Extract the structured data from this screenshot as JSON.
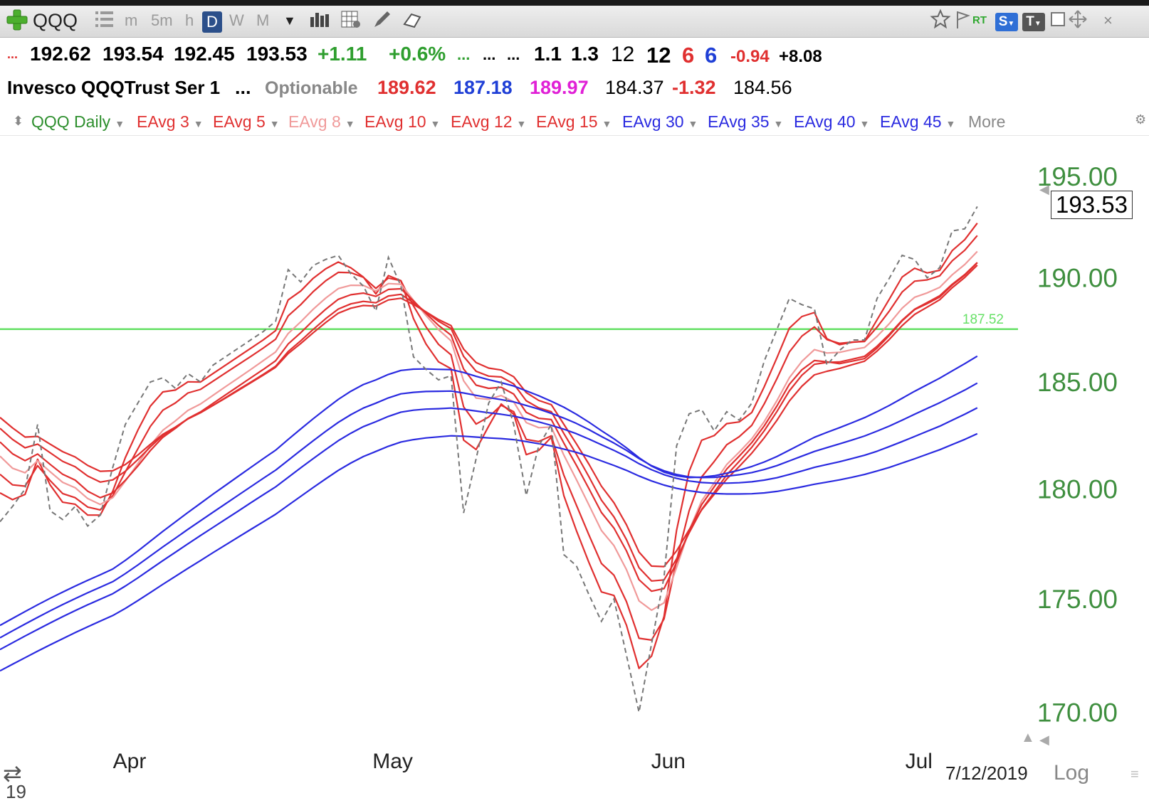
{
  "toolbar": {
    "symbol": "QQQ",
    "timeframes": [
      "m",
      "5m",
      "h",
      "D",
      "W",
      "M"
    ],
    "active_timeframe": "D",
    "rt_label": "RT",
    "s_label": "S",
    "t_label": "T"
  },
  "quote": {
    "row1": {
      "ellipsis": "...",
      "open": "192.62",
      "high": "193.54",
      "low": "192.45",
      "close": "193.53",
      "change": "+1.11",
      "change_pct": "+0.6%",
      "dots1": "...",
      "dots2": "...",
      "dots3": "...",
      "v1": "1.1",
      "v2": "1.3",
      "v3": "12",
      "v4": "12",
      "v5": "6",
      "v6": "6",
      "v7": "-0.94",
      "v8": "+8.08"
    },
    "row2": {
      "name": "Invesco QQQTrust Ser 1",
      "dots": "...",
      "optionable": "Optionable",
      "p1": "189.62",
      "p2": "187.18",
      "p3": "189.97",
      "p4": "184.37",
      "p5": "-1.32",
      "p6": "184.56"
    }
  },
  "legend": {
    "main": "QQQ Daily",
    "items": [
      {
        "label": "EAvg 3",
        "color": "#e03030"
      },
      {
        "label": "EAvg 5",
        "color": "#e03030"
      },
      {
        "label": "EAvg 8",
        "color": "#f09a9a"
      },
      {
        "label": "EAvg 10",
        "color": "#e03030"
      },
      {
        "label": "EAvg 12",
        "color": "#e03030"
      },
      {
        "label": "EAvg 15",
        "color": "#e03030"
      },
      {
        "label": "EAvg 30",
        "color": "#2a2ae0"
      },
      {
        "label": "EAvg 35",
        "color": "#2a2ae0"
      },
      {
        "label": "EAvg 40",
        "color": "#2a2ae0"
      },
      {
        "label": "EAvg 45",
        "color": "#2a2ae0"
      }
    ],
    "more": "More"
  },
  "chart_data": {
    "type": "line",
    "title": "QQQ Daily",
    "ylim": [
      168.5,
      197.0
    ],
    "y_ticks": [
      "195.00",
      "190.00",
      "185.00",
      "180.00",
      "175.00",
      "170.00"
    ],
    "y_tick_values": [
      195,
      190,
      185,
      180,
      175,
      170
    ],
    "x_month_labels": [
      {
        "label": "Apr",
        "index": 10
      },
      {
        "label": "May",
        "index": 31
      },
      {
        "label": "Jun",
        "index": 53
      },
      {
        "label": "Jul",
        "index": 73
      }
    ],
    "last_date": "7/12/2019",
    "current_price_label": "193.53",
    "horizontal_line": {
      "value": 187.52,
      "label": "187.52",
      "color": "#66e066"
    },
    "scale_label": "Log",
    "year_fragment": "19",
    "price_series": {
      "name": "QQQ",
      "style": "dashed",
      "color": "#777777",
      "values": [
        178.5,
        179.2,
        180.0,
        183.0,
        179.0,
        178.6,
        179.2,
        178.3,
        178.8,
        181.0,
        183.0,
        184.0,
        185.0,
        185.2,
        184.7,
        185.4,
        185.0,
        185.8,
        186.2,
        186.6,
        187.0,
        187.4,
        187.9,
        190.4,
        189.8,
        190.6,
        190.9,
        191.1,
        190.2,
        189.6,
        188.4,
        191.0,
        189.6,
        186.2,
        185.6,
        185.1,
        185.3,
        178.9,
        181.4,
        184.0,
        185.0,
        183.0,
        179.7,
        182.0,
        183.0,
        177.0,
        176.5,
        175.2,
        174.0,
        175.0,
        172.5,
        170.0,
        173.0,
        176.0,
        182.0,
        183.5,
        183.7,
        182.7,
        183.6,
        183.2,
        184.0,
        186.0,
        187.5,
        189.0,
        188.7,
        188.5,
        185.8,
        186.5,
        187.0,
        187.0,
        189.0,
        190.0,
        191.1,
        190.9,
        190.0,
        190.5,
        192.3,
        192.4,
        193.5
      ]
    },
    "series": [
      {
        "name": "EAvg 3",
        "color": "#e03030",
        "values": [
          179.82,
          179.51,
          179.75,
          181.38,
          180.19,
          179.39,
          179.3,
          178.8,
          178.8,
          179.9,
          181.45,
          182.73,
          183.86,
          184.53,
          184.62,
          185.01,
          185.0,
          185.4,
          185.8,
          186.2,
          186.6,
          187.0,
          187.45,
          188.93,
          189.36,
          189.98,
          190.44,
          190.77,
          190.49,
          190.04,
          189.22,
          190.11,
          189.86,
          188.03,
          186.81,
          185.96,
          185.63,
          182.27,
          181.83,
          182.92,
          183.96,
          183.48,
          181.59,
          181.79,
          182.4,
          179.7,
          178.1,
          176.65,
          175.32,
          175.16,
          173.83,
          171.92,
          172.46,
          174.23,
          178.11,
          180.81,
          182.26,
          182.48,
          183.04,
          183.12,
          183.56,
          184.78,
          186.14,
          187.57,
          188.13,
          188.32,
          187.06,
          186.78,
          186.89,
          186.95,
          187.97,
          188.99,
          190.04,
          190.47,
          190.24,
          190.37,
          191.33,
          191.87,
          192.68
        ]
      },
      {
        "name": "EAvg 5",
        "color": "#e03030",
        "values": [
          180.68,
          180.19,
          180.13,
          181.08,
          180.39,
          179.79,
          179.6,
          179.17,
          179.04,
          179.69,
          180.79,
          181.86,
          182.91,
          183.67,
          184.01,
          184.48,
          184.65,
          185.04,
          185.43,
          185.82,
          186.21,
          186.61,
          187.04,
          188.16,
          188.7,
          189.33,
          189.86,
          190.27,
          190.25,
          190.03,
          189.49,
          189.99,
          189.86,
          188.64,
          187.63,
          186.79,
          186.29,
          183.83,
          183.02,
          183.35,
          183.9,
          183.6,
          182.3,
          182.2,
          182.47,
          180.64,
          179.26,
          177.9,
          176.6,
          176.07,
          174.88,
          173.25,
          173.17,
          174.11,
          176.74,
          179.0,
          180.56,
          181.27,
          182.05,
          182.43,
          182.96,
          183.97,
          185.15,
          186.43,
          187.19,
          187.63,
          187.02,
          186.84,
          186.9,
          186.93,
          187.62,
          188.41,
          189.31,
          189.84,
          189.9,
          190.1,
          190.83,
          191.35,
          192.07
        ]
      },
      {
        "name": "EAvg 8",
        "color": "#f09a9a",
        "values": [
          181.52,
          180.96,
          180.75,
          181.31,
          180.8,
          180.31,
          180.06,
          179.56,
          179.29,
          179.6,
          180.36,
          181.17,
          182.02,
          182.73,
          183.17,
          183.66,
          183.96,
          184.37,
          184.78,
          185.18,
          185.59,
          186.01,
          186.43,
          187.31,
          187.87,
          188.48,
          189.02,
          189.48,
          189.64,
          189.63,
          189.36,
          189.72,
          189.69,
          188.91,
          188.18,
          187.5,
          186.96,
          185.06,
          184.24,
          184.18,
          184.36,
          184.06,
          183.09,
          182.85,
          182.88,
          181.57,
          180.44,
          179.27,
          178.1,
          177.41,
          176.32,
          174.92,
          174.5,
          174.83,
          176.42,
          178.1,
          179.45,
          180.28,
          181.13,
          181.71,
          182.33,
          183.14,
          184.11,
          185.2,
          185.98,
          186.54,
          186.38,
          186.41,
          186.54,
          186.64,
          187.17,
          187.8,
          188.53,
          189.06,
          189.27,
          189.54,
          190.15,
          190.65,
          191.29
        ]
      },
      {
        "name": "EAvg 10",
        "color": "#e03030",
        "values": [
          182.18,
          181.63,
          181.31,
          181.62,
          181.14,
          180.68,
          180.41,
          179.9,
          179.6,
          179.82,
          180.4,
          181.06,
          181.78,
          182.4,
          182.82,
          183.28,
          183.59,
          183.99,
          184.39,
          184.79,
          185.19,
          185.59,
          186.01,
          186.81,
          187.35,
          187.94,
          188.48,
          188.96,
          189.18,
          189.26,
          189.1,
          189.44,
          189.47,
          188.88,
          188.28,
          187.7,
          187.23,
          185.62,
          184.85,
          184.7,
          184.75,
          184.43,
          183.57,
          183.29,
          183.23,
          182.13,
          181.1,
          180.02,
          178.92,
          178.21,
          177.17,
          175.87,
          175.35,
          175.47,
          176.65,
          178.08,
          179.28,
          180.1,
          180.92,
          181.52,
          182.15,
          182.94,
          183.86,
          184.89,
          185.58,
          186.02,
          185.96,
          185.87,
          185.99,
          186.11,
          186.61,
          187.23,
          187.92,
          188.46,
          188.75,
          189.07,
          189.65,
          190.13,
          190.74
        ]
      },
      {
        "name": "EAvg 12",
        "color": "#e03030",
        "values": [
          182.82,
          182.3,
          181.91,
          182.08,
          181.68,
          181.28,
          181.03,
          180.6,
          180.32,
          180.42,
          180.82,
          181.36,
          181.95,
          182.49,
          182.86,
          183.26,
          183.55,
          183.9,
          184.26,
          184.63,
          184.99,
          185.36,
          185.75,
          186.45,
          186.96,
          187.51,
          188.03,
          188.49,
          188.74,
          188.86,
          188.79,
          189.12,
          189.2,
          188.79,
          188.34,
          187.9,
          187.55,
          186.22,
          185.51,
          185.28,
          185.24,
          184.91,
          184.11,
          183.78,
          183.6,
          182.58,
          181.61,
          180.57,
          179.49,
          178.72,
          177.68,
          176.41,
          175.81,
          175.86,
          176.81,
          177.99,
          179.06,
          179.85,
          180.65,
          181.28,
          181.93,
          182.71,
          183.6,
          184.58,
          185.32,
          185.84,
          185.93,
          185.95,
          186.08,
          186.22,
          186.7,
          187.29,
          187.95,
          188.48,
          188.8,
          189.13,
          189.69,
          190.16,
          190.75
        ]
      },
      {
        "name": "EAvg 15",
        "color": "#e03030",
        "values": [
          183.33,
          182.84,
          182.41,
          182.44,
          182.08,
          181.73,
          181.48,
          181.09,
          180.82,
          180.84,
          181.13,
          181.57,
          182.07,
          182.54,
          182.88,
          183.27,
          183.55,
          183.89,
          184.24,
          184.6,
          184.96,
          185.32,
          185.7,
          186.35,
          186.83,
          187.35,
          187.84,
          188.29,
          188.53,
          188.66,
          188.63,
          188.93,
          189.01,
          188.71,
          188.35,
          187.98,
          187.69,
          186.57,
          185.92,
          185.66,
          185.57,
          185.25,
          184.5,
          184.13,
          183.93,
          183.01,
          182.1,
          181.15,
          180.13,
          179.37,
          178.36,
          177.12,
          176.48,
          176.46,
          177.17,
          178.13,
          179.04,
          179.75,
          180.46,
          181.04,
          181.66,
          182.38,
          183.19,
          184.1,
          184.8,
          185.34,
          185.51,
          185.64,
          185.82,
          185.99,
          186.47,
          187.04,
          187.69,
          188.23,
          188.58,
          188.94,
          189.52,
          190.02,
          190.62
        ]
      },
      {
        "name": "EAvg 30",
        "color": "#2a2ae0",
        "values": [
          173.82,
          174.13,
          174.44,
          174.74,
          175.03,
          175.31,
          175.58,
          175.84,
          176.09,
          176.35,
          176.74,
          177.16,
          177.61,
          178.06,
          178.49,
          178.92,
          179.34,
          179.76,
          180.17,
          180.58,
          180.99,
          181.4,
          181.8,
          182.3,
          182.79,
          183.27,
          183.73,
          184.18,
          184.56,
          184.88,
          185.1,
          185.36,
          185.55,
          185.61,
          185.62,
          185.6,
          185.59,
          185.45,
          185.27,
          185.11,
          184.97,
          184.81,
          184.58,
          184.35,
          184.09,
          183.81,
          183.48,
          183.11,
          182.71,
          182.33,
          181.91,
          181.45,
          181.06,
          180.78,
          180.61,
          180.53,
          180.55,
          180.61,
          180.73,
          180.87,
          181.04,
          181.25,
          181.5,
          181.8,
          182.1,
          182.4,
          182.63,
          182.85,
          183.08,
          183.32,
          183.6,
          183.9,
          184.23,
          184.56,
          184.87,
          185.18,
          185.53,
          185.87,
          186.23
        ]
      },
      {
        "name": "EAvg 35",
        "color": "#2a2ae0",
        "values": [
          173.27,
          173.58,
          173.88,
          174.18,
          174.47,
          174.75,
          175.02,
          175.28,
          175.53,
          175.78,
          176.14,
          176.53,
          176.94,
          177.35,
          177.75,
          178.15,
          178.54,
          178.93,
          179.32,
          179.71,
          180.1,
          180.49,
          180.87,
          181.33,
          181.79,
          182.24,
          182.68,
          183.1,
          183.46,
          183.77,
          184.0,
          184.25,
          184.44,
          184.51,
          184.55,
          184.56,
          184.57,
          184.48,
          184.37,
          184.26,
          184.17,
          184.06,
          183.89,
          183.72,
          183.52,
          183.3,
          183.05,
          182.76,
          182.44,
          182.13,
          181.79,
          181.41,
          181.08,
          180.84,
          180.67,
          180.56,
          180.53,
          180.54,
          180.59,
          180.66,
          180.76,
          180.9,
          181.08,
          181.3,
          181.52,
          181.74,
          181.92,
          182.09,
          182.27,
          182.46,
          182.69,
          182.93,
          183.2,
          183.48,
          183.75,
          184.02,
          184.32,
          184.62,
          184.95
        ]
      },
      {
        "name": "EAvg 40",
        "color": "#2a2ae0",
        "values": [
          172.75,
          173.05,
          173.35,
          173.64,
          173.93,
          174.21,
          174.48,
          174.74,
          174.99,
          175.24,
          175.58,
          175.95,
          176.34,
          176.73,
          177.11,
          177.49,
          177.87,
          178.24,
          178.61,
          178.98,
          179.36,
          179.73,
          180.1,
          180.54,
          180.98,
          181.41,
          181.83,
          182.24,
          182.59,
          182.9,
          183.13,
          183.38,
          183.58,
          183.67,
          183.72,
          183.74,
          183.77,
          183.71,
          183.63,
          183.55,
          183.48,
          183.39,
          183.26,
          183.12,
          182.96,
          182.78,
          182.57,
          182.32,
          182.05,
          181.79,
          181.5,
          181.17,
          180.89,
          180.66,
          180.49,
          180.37,
          180.3,
          180.27,
          180.27,
          180.29,
          180.33,
          180.41,
          180.52,
          180.67,
          180.83,
          181.0,
          181.13,
          181.26,
          181.41,
          181.56,
          181.75,
          181.97,
          182.2,
          182.44,
          182.68,
          182.92,
          183.2,
          183.48,
          183.78
        ]
      },
      {
        "name": "EAvg 45",
        "color": "#2a2ae0",
        "values": [
          171.81,
          172.1,
          172.39,
          172.68,
          172.96,
          173.23,
          173.5,
          173.76,
          174.01,
          174.26,
          174.58,
          174.93,
          175.29,
          175.66,
          176.02,
          176.38,
          176.73,
          177.09,
          177.44,
          177.79,
          178.14,
          178.49,
          178.84,
          179.25,
          179.66,
          180.07,
          180.47,
          180.86,
          181.2,
          181.5,
          181.74,
          181.98,
          182.18,
          182.29,
          182.37,
          182.42,
          182.47,
          182.45,
          182.41,
          182.37,
          182.34,
          182.29,
          182.2,
          182.1,
          181.99,
          181.85,
          181.7,
          181.51,
          181.3,
          181.09,
          180.86,
          180.6,
          180.37,
          180.18,
          180.03,
          179.92,
          179.84,
          179.79,
          179.77,
          179.77,
          179.78,
          179.82,
          179.89,
          179.99,
          180.1,
          180.22,
          180.32,
          180.42,
          180.54,
          180.67,
          180.83,
          181.0,
          181.2,
          181.4,
          181.61,
          181.82,
          182.06,
          182.3,
          182.57
        ]
      }
    ]
  }
}
